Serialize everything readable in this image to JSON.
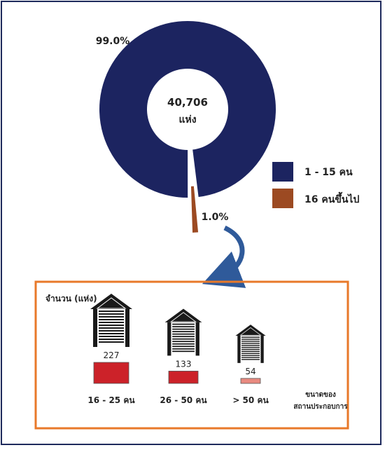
{
  "colors": {
    "frame": "#1e2a5c",
    "small": "#1c2460",
    "large": "#9c4a22",
    "box_border": "#e8792a",
    "arrow": "#2f5a9a",
    "bar_dark": "#cc2229",
    "bar_light": "#e98a80"
  },
  "center_label": {
    "value": "40,706",
    "unit": "แห่ง"
  },
  "breakdown": {
    "ylabel": "จำนวน (แห่ง)",
    "footer_line1": "ขนาดของ",
    "footer_line2": "สถานประกอบการ"
  },
  "chart_data": [
    {
      "type": "pie",
      "style": "donut",
      "labels": [
        "1 - 15 คน",
        "16 คนขึ้นไป"
      ],
      "values": [
        99.0,
        1.0
      ],
      "value_labels": [
        "99.0%",
        "1.0%"
      ],
      "colors": [
        "#1c2460",
        "#9c4a22"
      ],
      "legend_position": "right",
      "center_text": "40,706 แห่ง"
    },
    {
      "type": "bar",
      "title": "",
      "ylabel": "จำนวน (แห่ง)",
      "xlabel": "ขนาดของสถานประกอบการ",
      "categories": [
        "16 - 25 คน",
        "26 - 50 คน",
        "> 50 คน"
      ],
      "values": [
        227,
        133,
        54
      ],
      "value_labels": [
        "227",
        "133",
        "54"
      ],
      "colors": [
        "#cc2229",
        "#cc2229",
        "#e98a80"
      ]
    }
  ]
}
